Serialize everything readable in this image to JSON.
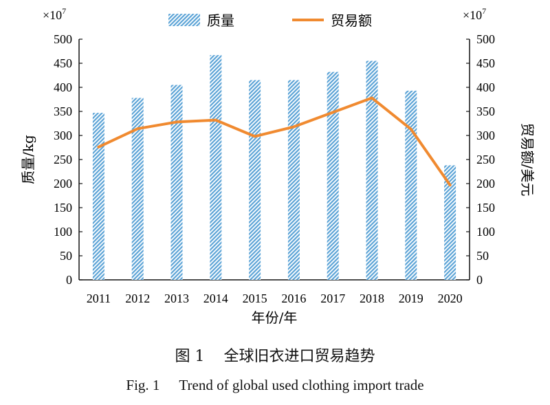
{
  "chart_data": {
    "type": "bar",
    "categories": [
      "2011",
      "2012",
      "2013",
      "2014",
      "2015",
      "2016",
      "2017",
      "2018",
      "2019",
      "2020"
    ],
    "series": [
      {
        "name": "质量",
        "kind": "bar",
        "axis": "left",
        "color": "#5BA3D6",
        "values": [
          347,
          378,
          405,
          467,
          415,
          415,
          432,
          455,
          393,
          238
        ]
      },
      {
        "name": "贸易额",
        "kind": "line",
        "axis": "right",
        "color": "#F08A30",
        "values": [
          276,
          314,
          328,
          332,
          298,
          318,
          348,
          378,
          313,
          197
        ]
      }
    ],
    "xlabel": "年份/年",
    "ylabel_left": "质量/kg",
    "ylabel_right": "贸易额/美元",
    "ylim": [
      0,
      500
    ],
    "y_ticks": [
      0,
      50,
      100,
      150,
      200,
      250,
      300,
      350,
      400,
      450,
      500
    ],
    "multiplier_label": "×10",
    "multiplier_exponent": "7",
    "legend_position": "top",
    "grid": false
  },
  "caption": {
    "cn_figure": "图 1",
    "cn_title": "全球旧衣进口贸易趋势",
    "en_figure": "Fig. 1",
    "en_title": "Trend of global used clothing import trade"
  }
}
